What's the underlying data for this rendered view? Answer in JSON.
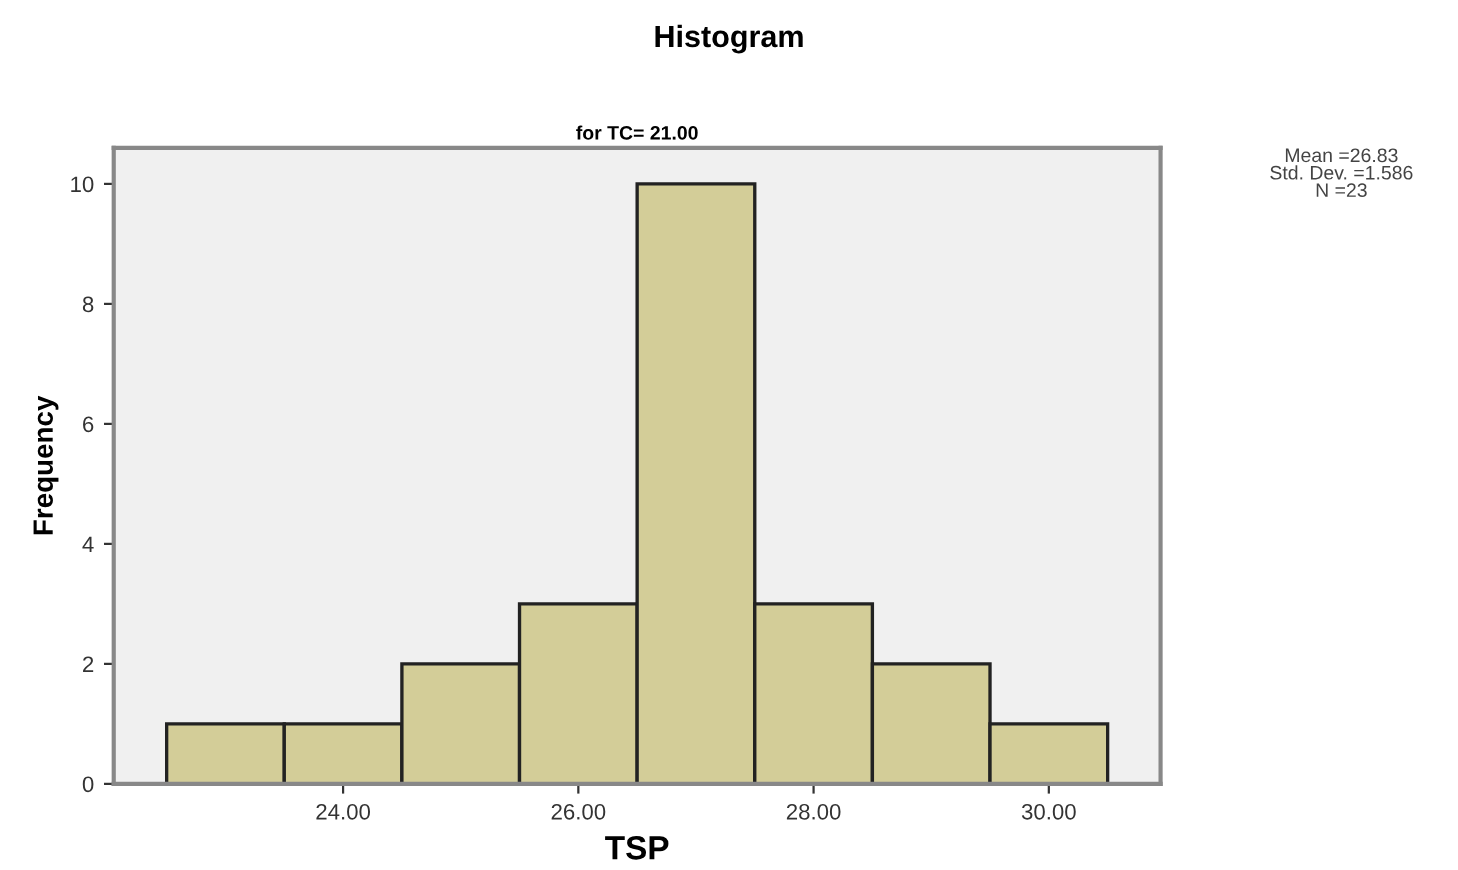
{
  "chart_data": {
    "type": "histogram",
    "title": "Histogram",
    "subtitle": "for TC= 21.00",
    "xlabel": "TSP",
    "ylabel": "Frequency",
    "bins": [
      22.5,
      23.5,
      24.5,
      25.5,
      26.5,
      27.5,
      28.5,
      29.5,
      30.5
    ],
    "values": [
      1,
      1,
      2,
      3,
      10,
      3,
      2,
      1
    ],
    "color": "#d3cd98",
    "xlim": [
      22.05,
      30.95
    ],
    "ylim": [
      0,
      10.6
    ],
    "xticks": [
      {
        "value": 24,
        "label": "24.00"
      },
      {
        "value": 26,
        "label": "26.00"
      },
      {
        "value": 28,
        "label": "28.00"
      },
      {
        "value": 30,
        "label": "30.00"
      }
    ],
    "yticks": [
      0,
      2,
      4,
      6,
      8,
      10
    ],
    "annotations": [
      "Mean =26.83\nStd. Dev. =1.586\nN =23"
    ],
    "grid": false,
    "legend": false
  }
}
